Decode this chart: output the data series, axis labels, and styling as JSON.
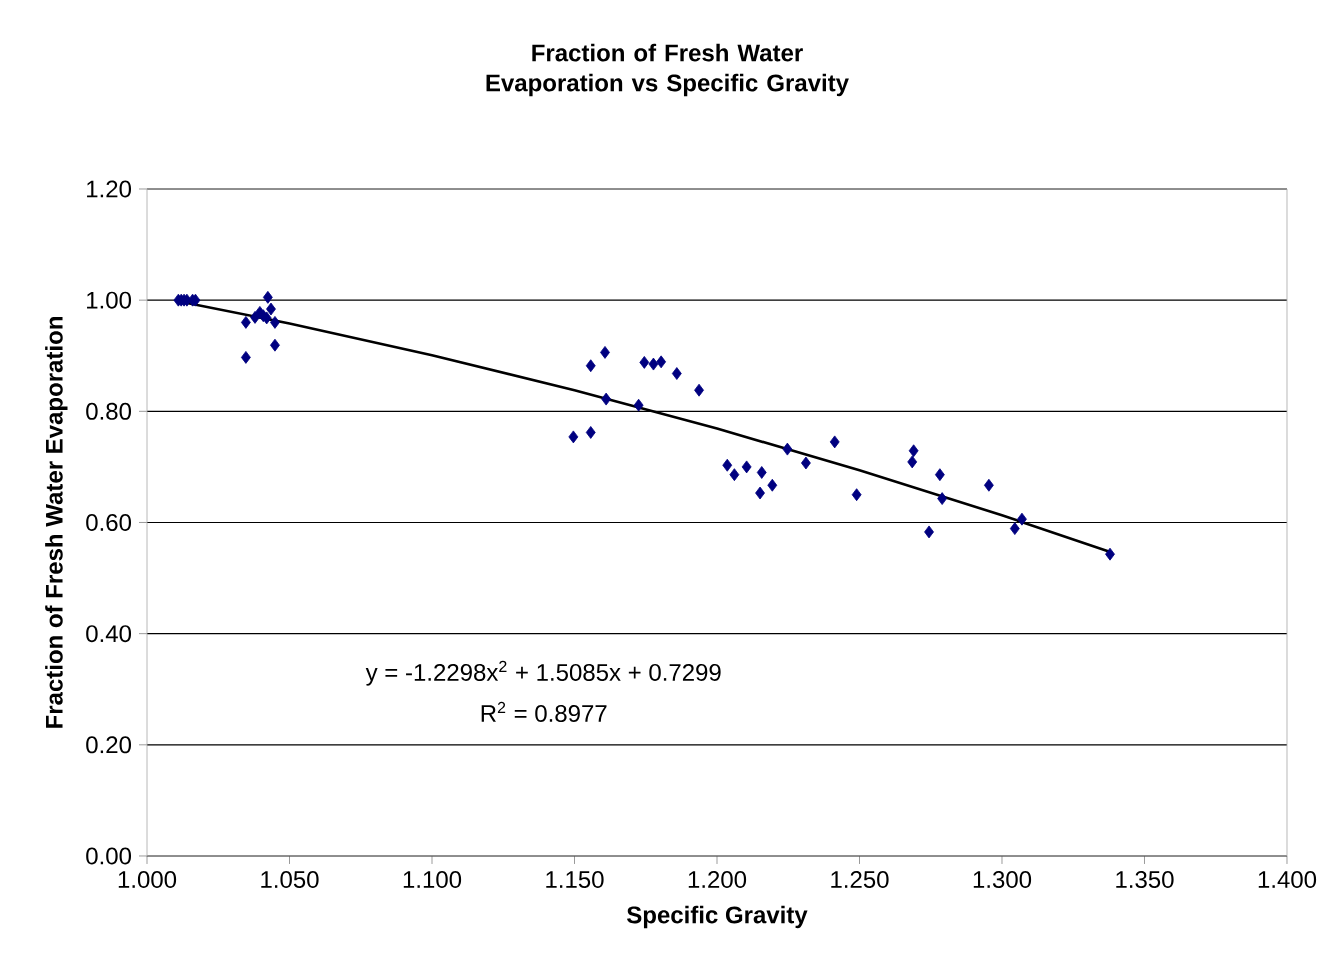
{
  "chart_data": {
    "type": "scatter",
    "title": "Fraction of Fresh Water Evaporation vs Specific Gravity",
    "xlabel": "Specific Gravity",
    "ylabel": "Fraction of Fresh Water Evaporation",
    "xlim": [
      1.0,
      1.4
    ],
    "ylim": [
      0,
      1.2
    ],
    "xticks": [
      {
        "value": 1.0,
        "label": "1.000"
      },
      {
        "value": 1.05,
        "label": "1.050"
      },
      {
        "value": 1.1,
        "label": "1.100"
      },
      {
        "value": 1.15,
        "label": "1.150"
      },
      {
        "value": 1.2,
        "label": "1.200"
      },
      {
        "value": 1.25,
        "label": "1.250"
      },
      {
        "value": 1.3,
        "label": "1.300"
      },
      {
        "value": 1.35,
        "label": "1.350"
      },
      {
        "value": 1.4,
        "label": "1.400"
      }
    ],
    "yticks": [
      {
        "value": 0,
        "label": "0.00"
      },
      {
        "value": 0.2,
        "label": "0.20"
      },
      {
        "value": 0.4,
        "label": "0.40"
      },
      {
        "value": 0.6,
        "label": "0.60"
      },
      {
        "value": 0.8,
        "label": "0.80"
      },
      {
        "value": 1.0,
        "label": "1.00"
      },
      {
        "value": 1.2,
        "label": "1.20"
      }
    ],
    "grid": "y",
    "annotations": [
      "y = -1.2298x$^{2}$ + 1.5085x + 0.7299",
      "R$^{2}$ = 0.8977"
    ],
    "series": [
      {
        "marker": "diamond",
        "color": "#000080",
        "x": [
          1.011,
          1.012,
          1.013,
          1.014,
          1.016,
          1.017,
          1.0424,
          1.0347,
          1.0379,
          1.0396,
          1.0408,
          1.042,
          1.0435,
          1.0449,
          1.0449,
          1.0347,
          1.1496,
          1.1557,
          1.1557,
          1.1607,
          1.1611,
          1.1725,
          1.1745,
          1.1777,
          1.1804,
          1.1859,
          1.1937,
          1.2036,
          1.2061,
          1.2104,
          1.2157,
          1.2151,
          1.2194,
          1.2247,
          1.2312,
          1.2413,
          1.249,
          1.269,
          1.2685,
          1.2782,
          1.279,
          1.2744,
          1.2954,
          1.3045,
          1.307,
          1.3379
        ],
        "values": [
          1.0,
          1.0,
          1.0,
          1.0,
          1.0,
          1.0,
          1.005,
          0.96,
          0.969,
          0.978,
          0.972,
          0.968,
          0.984,
          0.96,
          0.919,
          0.897,
          0.754,
          0.762,
          0.882,
          0.906,
          0.822,
          0.811,
          0.888,
          0.885,
          0.889,
          0.868,
          0.838,
          0.703,
          0.686,
          0.7,
          0.69,
          0.653,
          0.667,
          0.732,
          0.707,
          0.745,
          0.65,
          0.729,
          0.709,
          0.686,
          0.643,
          0.583,
          0.667,
          0.589,
          0.606,
          0.543
        ]
      },
      {
        "type": "line",
        "marker": "none",
        "line_style": "solid",
        "color": "#000000",
        "x": [
          1.011,
          1.05,
          1.1,
          1.15,
          1.2,
          1.25,
          1.3,
          1.338
        ],
        "values": [
          0.998,
          0.958,
          0.901,
          0.838,
          0.769,
          0.694,
          0.613,
          0.547
        ]
      }
    ]
  }
}
